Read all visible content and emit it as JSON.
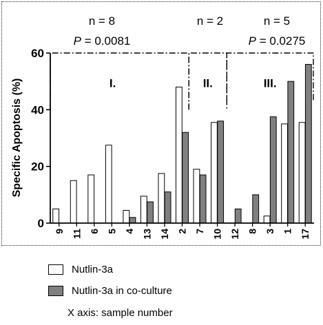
{
  "chart_data": {
    "type": "bar",
    "ylabel": "Specific Apoptosis (%)",
    "ylim": [
      0,
      60
    ],
    "yticks": [
      "0",
      "20",
      "40",
      "60"
    ],
    "categories": [
      "9",
      "11",
      "6",
      "5",
      "4",
      "13",
      "14",
      "2",
      "7",
      "10",
      "12",
      "8",
      "3",
      "1",
      "17"
    ],
    "series": [
      {
        "name": "Nutlin-3a",
        "color": "#ffffff",
        "values": [
          5,
          15,
          17,
          27.5,
          4.5,
          9.5,
          17.5,
          48,
          19,
          35.5,
          0,
          0,
          2.5,
          35,
          35.5
        ]
      },
      {
        "name": "Nutlin-3a in co-culture",
        "color": "#808080",
        "values": [
          null,
          null,
          null,
          null,
          2,
          7.5,
          11,
          32,
          17,
          36,
          5,
          10,
          37.5,
          50,
          56
        ]
      }
    ],
    "groups": [
      {
        "label": "I.",
        "n": "n = 8",
        "p": "P = 0.0081",
        "from": 0,
        "to": 7
      },
      {
        "label": "II.",
        "n": "n = 2",
        "p": "",
        "from": 8,
        "to": 9
      },
      {
        "label": "III.",
        "n": "n = 5",
        "p": "P = 0.0275",
        "from": 10,
        "to": 14
      }
    ]
  },
  "note": "X axis: sample number"
}
